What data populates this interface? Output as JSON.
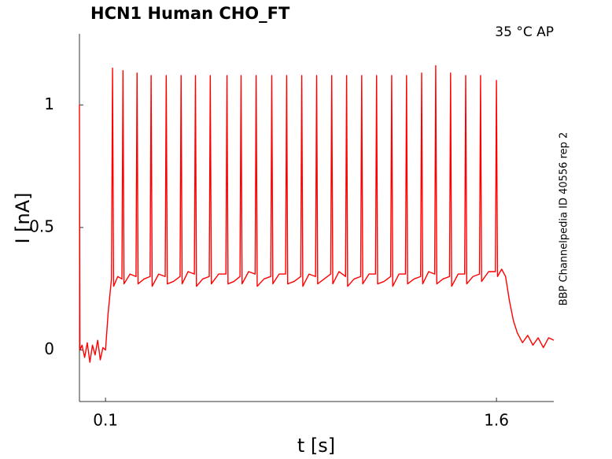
{
  "chart_data": {
    "type": "line",
    "title": "HCN1  Human  CHO_FT",
    "annotation": "35 °C  AP",
    "side_label": "BBP Channelpedia ID 40556 rep 2",
    "x_label": "t [s]",
    "y_label": "I [nA]",
    "xlim": [
      0,
      1.82
    ],
    "ylim": [
      -0.21,
      1.29
    ],
    "xticks": [
      0.1,
      1.6
    ],
    "yticks": [
      0,
      0.5,
      1
    ],
    "grid": false,
    "series": [
      {
        "color": "#ff0000",
        "x": [
          0,
          0.002,
          0.01,
          0.02,
          0.03,
          0.04,
          0.05,
          0.06,
          0.07,
          0.08,
          0.09,
          0.1,
          0.11,
          0.12,
          0.123,
          0.127,
          0.131,
          0.147,
          0.163,
          0.167,
          0.171,
          0.194,
          0.217,
          0.221,
          0.225,
          0.248,
          0.271,
          0.275,
          0.279,
          0.304,
          0.329,
          0.333,
          0.337,
          0.361,
          0.386,
          0.39,
          0.394,
          0.417,
          0.441,
          0.445,
          0.449,
          0.473,
          0.498,
          0.502,
          0.506,
          0.534,
          0.562,
          0.566,
          0.57,
          0.593,
          0.616,
          0.62,
          0.624,
          0.649,
          0.674,
          0.678,
          0.682,
          0.708,
          0.734,
          0.738,
          0.742,
          0.766,
          0.791,
          0.795,
          0.799,
          0.824,
          0.849,
          0.853,
          0.857,
          0.881,
          0.906,
          0.91,
          0.914,
          0.939,
          0.964,
          0.968,
          0.972,
          0.996,
          1.021,
          1.025,
          1.029,
          1.054,
          1.079,
          1.083,
          1.087,
          1.111,
          1.136,
          1.14,
          1.144,
          1.169,
          1.194,
          1.198,
          1.202,
          1.226,
          1.251,
          1.255,
          1.259,
          1.284,
          1.309,
          1.313,
          1.317,
          1.34,
          1.363,
          1.367,
          1.371,
          1.395,
          1.42,
          1.424,
          1.428,
          1.453,
          1.478,
          1.482,
          1.486,
          1.51,
          1.535,
          1.539,
          1.543,
          1.57,
          1.596,
          1.6,
          1.604,
          1.62,
          1.635,
          1.65,
          1.665,
          1.68,
          1.7,
          1.72,
          1.74,
          1.76,
          1.78,
          1.8,
          1.82
        ],
        "values": [
          1.0,
          0.0,
          0.02,
          -0.03,
          0.03,
          -0.05,
          0.02,
          -0.02,
          0.04,
          -0.04,
          0.01,
          0.0,
          0.15,
          0.26,
          0.29,
          1.15,
          0.26,
          0.3,
          0.29,
          1.14,
          0.27,
          0.31,
          0.3,
          1.13,
          0.27,
          0.29,
          0.3,
          1.12,
          0.26,
          0.31,
          0.3,
          1.12,
          0.27,
          0.28,
          0.3,
          1.12,
          0.27,
          0.32,
          0.31,
          1.12,
          0.26,
          0.29,
          0.3,
          1.12,
          0.27,
          0.31,
          0.31,
          1.12,
          0.27,
          0.28,
          0.3,
          1.12,
          0.27,
          0.32,
          0.31,
          1.12,
          0.26,
          0.29,
          0.3,
          1.12,
          0.27,
          0.31,
          0.31,
          1.12,
          0.27,
          0.28,
          0.3,
          1.12,
          0.26,
          0.31,
          0.3,
          1.12,
          0.27,
          0.29,
          0.31,
          1.12,
          0.27,
          0.32,
          0.3,
          1.12,
          0.26,
          0.29,
          0.3,
          1.12,
          0.27,
          0.31,
          0.31,
          1.12,
          0.27,
          0.28,
          0.3,
          1.12,
          0.26,
          0.31,
          0.31,
          1.12,
          0.27,
          0.29,
          0.3,
          1.13,
          0.27,
          0.32,
          0.31,
          1.16,
          0.27,
          0.29,
          0.3,
          1.13,
          0.26,
          0.31,
          0.31,
          1.12,
          0.27,
          0.3,
          0.31,
          1.12,
          0.28,
          0.32,
          0.32,
          1.1,
          0.3,
          0.33,
          0.3,
          0.2,
          0.12,
          0.07,
          0.03,
          0.06,
          0.02,
          0.05,
          0.01,
          0.05,
          0.04
        ]
      }
    ]
  }
}
